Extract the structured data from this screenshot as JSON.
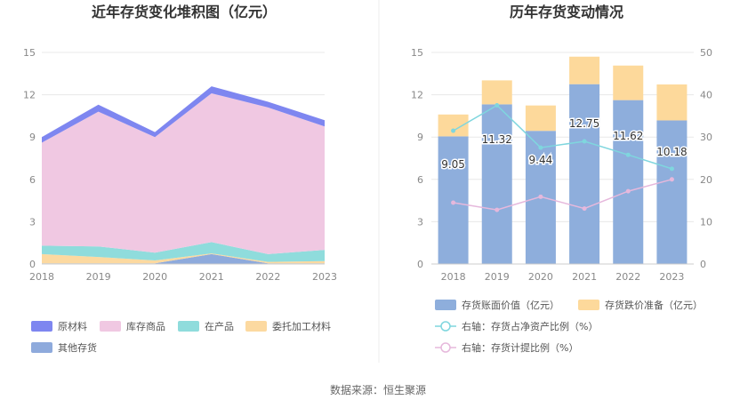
{
  "source_text": "数据来源：恒生聚源",
  "colors": {
    "raw_material": "#7e86f0",
    "goods": "#f0c8e2",
    "wip": "#8fdcdc",
    "consigned": "#fcd9a0",
    "other": "#8eaadc",
    "book_bar": "#8eaedc",
    "impairment_bar": "#fdd99b",
    "ratio_line": "#7fd6de",
    "provision_line": "#e6b8dc",
    "grid": "#e8e8e8",
    "divider": "#eeeeee"
  },
  "chart_data": [
    {
      "type": "area",
      "title": "近年存货变化堆积图（亿元）",
      "x": [
        "2018",
        "2019",
        "2020",
        "2021",
        "2022",
        "2023"
      ],
      "ylim": [
        0,
        15
      ],
      "yticks": [
        0,
        3,
        6,
        9,
        12,
        15
      ],
      "stacked": true,
      "series": [
        {
          "name": "其他存货",
          "color_key": "other",
          "values": [
            0.05,
            0.05,
            0.05,
            0.7,
            0.05,
            0.05
          ]
        },
        {
          "name": "委托加工材料",
          "color_key": "consigned",
          "values": [
            0.65,
            0.45,
            0.2,
            0.05,
            0.1,
            0.15
          ]
        },
        {
          "name": "在产品",
          "color_key": "wip",
          "values": [
            0.6,
            0.75,
            0.55,
            0.8,
            0.55,
            0.8
          ]
        },
        {
          "name": "库存商品",
          "color_key": "goods",
          "values": [
            7.3,
            9.55,
            8.2,
            10.55,
            10.4,
            8.75
          ]
        },
        {
          "name": "原材料",
          "color_key": "raw_material",
          "values": [
            0.4,
            0.5,
            0.35,
            0.5,
            0.4,
            0.45
          ]
        }
      ],
      "legend": [
        {
          "name": "原材料",
          "color_key": "raw_material"
        },
        {
          "name": "库存商品",
          "color_key": "goods"
        },
        {
          "name": "在产品",
          "color_key": "wip"
        },
        {
          "name": "委托加工材料",
          "color_key": "consigned"
        },
        {
          "name": "其他存货",
          "color_key": "other"
        }
      ]
    },
    {
      "type": "bar",
      "title": "历年存货变动情况",
      "categories": [
        "2018",
        "2019",
        "2020",
        "2021",
        "2022",
        "2023"
      ],
      "ylim": [
        0,
        15
      ],
      "yticks": [
        0,
        3,
        6,
        9,
        12,
        15
      ],
      "y2lim": [
        0,
        50
      ],
      "y2ticks": [
        0,
        10,
        20,
        30,
        40,
        50
      ],
      "series": [
        {
          "name": "存货账面价值（亿元）",
          "kind": "bar",
          "stacked": true,
          "color_key": "book_bar",
          "values": [
            9.05,
            11.32,
            9.44,
            12.75,
            11.62,
            10.18
          ],
          "labels": [
            "9.05",
            "11.32",
            "9.44",
            "12.75",
            "11.62",
            "10.18"
          ]
        },
        {
          "name": "存货跌价准备（亿元）",
          "kind": "bar",
          "stacked": true,
          "color_key": "impairment_bar",
          "values": [
            1.55,
            1.7,
            1.8,
            1.95,
            2.45,
            2.55
          ]
        },
        {
          "name": "右轴：存货占净资产比例（%）",
          "kind": "line",
          "axis": "right",
          "color_key": "ratio_line",
          "values": [
            31.5,
            37.5,
            27.5,
            29.0,
            25.8,
            22.5
          ]
        },
        {
          "name": "右轴：存货计提比例（%）",
          "kind": "line",
          "axis": "right",
          "color_key": "provision_line",
          "values": [
            14.5,
            12.8,
            15.9,
            13.1,
            17.2,
            20.0
          ]
        }
      ]
    }
  ]
}
